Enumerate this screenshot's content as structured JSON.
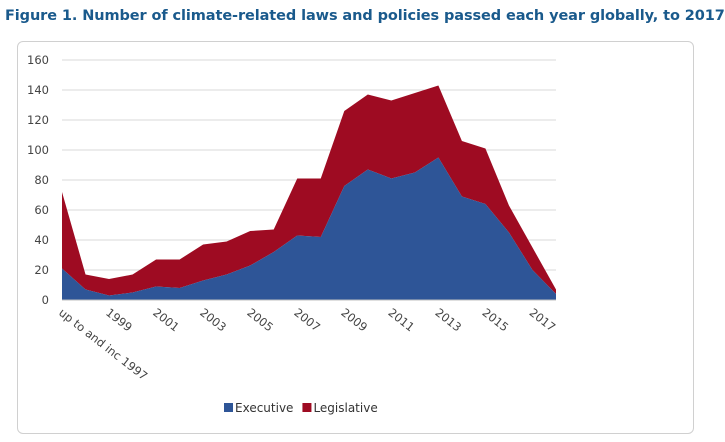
{
  "title": "Figure 1. Number of climate-related laws and policies passed each year globally, to 2017",
  "chart_data": {
    "type": "area",
    "stacked": true,
    "x": [
      "up to and inc 1997",
      "1998",
      "1999",
      "2000",
      "2001",
      "2002",
      "2003",
      "2004",
      "2005",
      "2006",
      "2007",
      "2008",
      "2009",
      "2010",
      "2011",
      "2012",
      "2013",
      "2014",
      "2015",
      "2016",
      "2017",
      "2018"
    ],
    "x_tick_labels": [
      "up to and inc 1997",
      "1999",
      "2001",
      "2003",
      "2005",
      "2007",
      "2009",
      "2011",
      "2013",
      "2015",
      "2017"
    ],
    "ylim": [
      0,
      160
    ],
    "y_ticks": [
      0,
      20,
      40,
      60,
      80,
      100,
      120,
      140,
      160
    ],
    "grid": true,
    "legend_position": "bottom",
    "series": [
      {
        "name": "Executive",
        "color": "#2e5597",
        "values": [
          21,
          7,
          3,
          5,
          9,
          8,
          13,
          17,
          23,
          32,
          43,
          42,
          76,
          87,
          81,
          85,
          95,
          69,
          64,
          45,
          20,
          4
        ]
      },
      {
        "name": "Legislative",
        "color": "#9e0b22",
        "values": [
          51,
          10,
          11,
          12,
          18,
          19,
          24,
          22,
          23,
          15,
          38,
          39,
          50,
          50,
          52,
          53,
          48,
          37,
          37,
          18,
          15,
          3
        ]
      }
    ]
  }
}
